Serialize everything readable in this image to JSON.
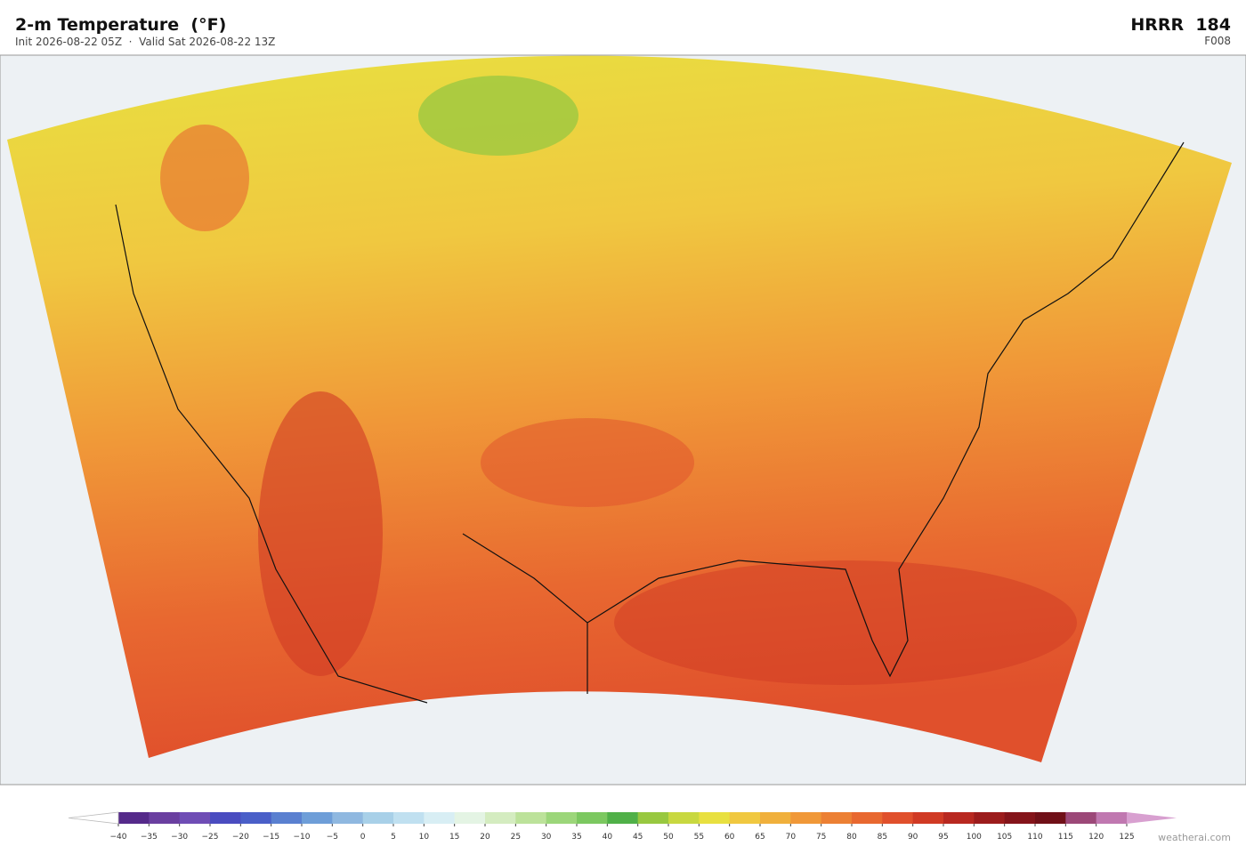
{
  "header": {
    "title": "2-m Temperature  (°F)",
    "subtitle": "Init 2026-08-22 05Z  ·  Valid Sat 2026-08-22 13Z",
    "model": "HRRR  184",
    "forecast_hour": "F008"
  },
  "colorbar": {
    "ticks": [
      {
        "value": -40,
        "label": "−40"
      },
      {
        "value": -35,
        "label": "−35"
      },
      {
        "value": -30,
        "label": "−30"
      },
      {
        "value": -25,
        "label": "−25"
      },
      {
        "value": -20,
        "label": "−20"
      },
      {
        "value": -15,
        "label": "−15"
      },
      {
        "value": -10,
        "label": "−10"
      },
      {
        "value": -5,
        "label": "−5"
      },
      0,
      5,
      10,
      15,
      20,
      25,
      30,
      35,
      40,
      45,
      50,
      55,
      60,
      65,
      70,
      75,
      80,
      85,
      90,
      95,
      100,
      105,
      110,
      115,
      120,
      125
    ],
    "colors": [
      "#552a8a",
      "#6a3fa0",
      "#6f4db5",
      "#4a4cc0",
      "#4a5fc8",
      "#5a80d0",
      "#6e9ed8",
      "#8fb8e0",
      "#a8d0e8",
      "#c0e0f0",
      "#d8eef4",
      "#e4f4e4",
      "#d4ecc0",
      "#bce29a",
      "#9cd67a",
      "#7cc860",
      "#50b048",
      "#98c840",
      "#c8d840",
      "#e8e040",
      "#f0c840",
      "#f0b03c",
      "#f09838",
      "#ec8034",
      "#e86830",
      "#e0502c",
      "#d03a24",
      "#b82820",
      "#9c1c1c",
      "#84141a",
      "#701018",
      "#9c4878",
      "#c078b0"
    ],
    "low_color": "#ffffff",
    "high_color": "#d8a0d0"
  },
  "watermark": "weatherai.com"
}
